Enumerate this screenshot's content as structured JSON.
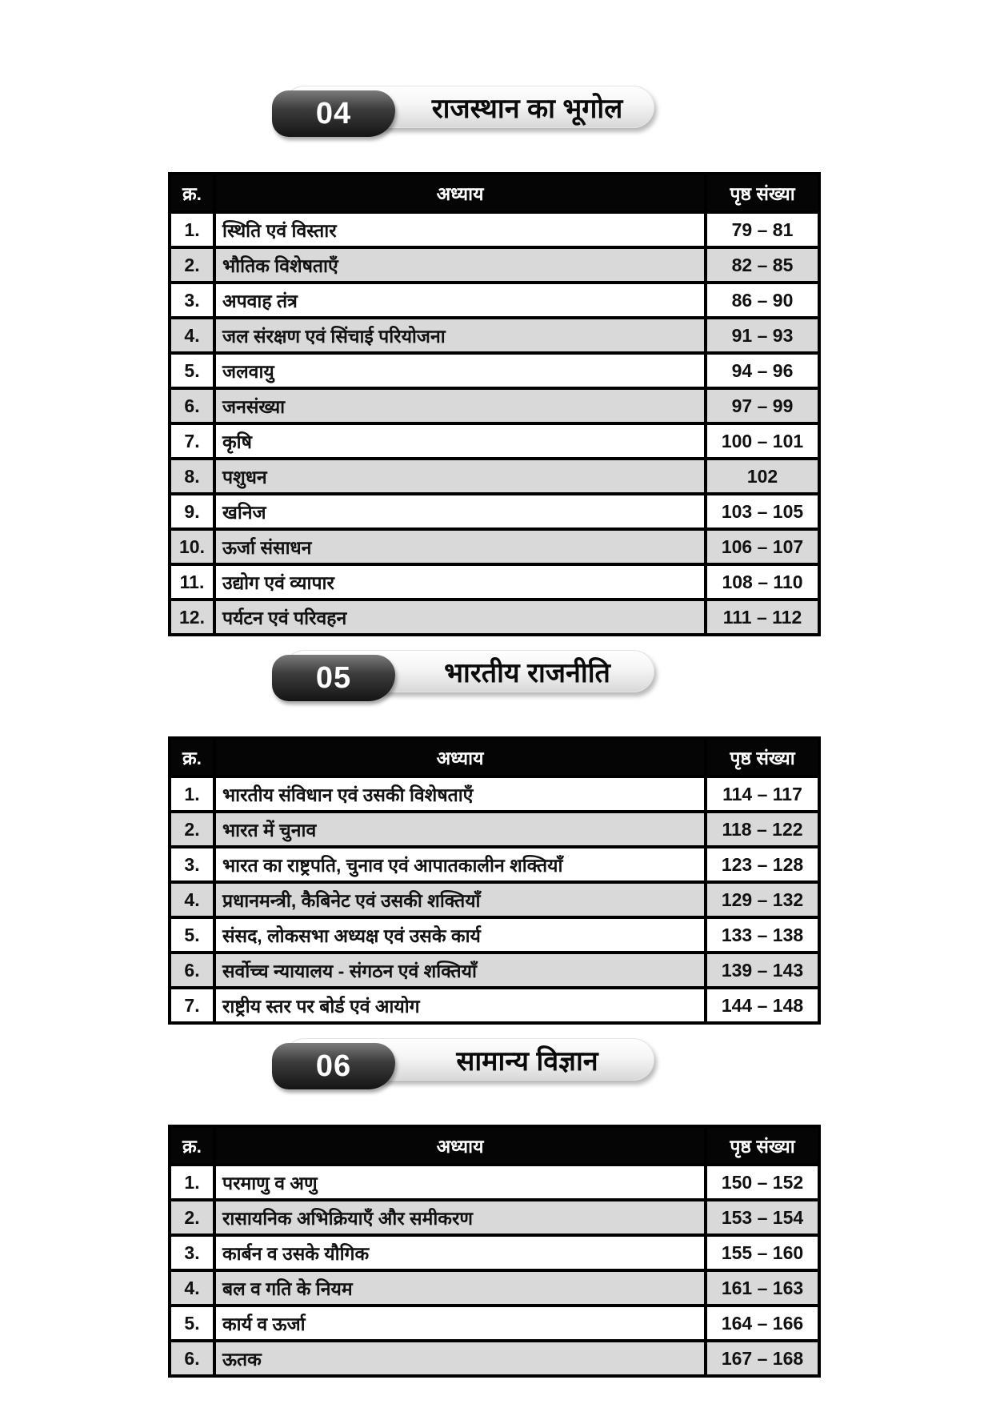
{
  "columns": {
    "no": "क्र.",
    "chapter": "अध्याय",
    "pages": "पृष्ठ संख्या"
  },
  "colors": {
    "table_header_bg": "#050505",
    "table_header_text": "#ffffff",
    "row_alt_bg": "#d9d9d9",
    "row_bg": "#ffffff",
    "border": "#000000",
    "badge_dark": "#141414",
    "pill_light": "#e9e9e9"
  },
  "sections": [
    {
      "number": "04",
      "title": "राजस्थान का भूगोल",
      "rows": [
        {
          "no": "1.",
          "chapter": "स्थिति एवं विस्तार",
          "pages": "79 – 81"
        },
        {
          "no": "2.",
          "chapter": "भौतिक विशेषताएँ",
          "pages": "82 – 85"
        },
        {
          "no": "3.",
          "chapter": "अपवाह तंत्र",
          "pages": "86 – 90"
        },
        {
          "no": "4.",
          "chapter": "जल संरक्षण एवं सिंचाई परियोजना",
          "pages": "91 – 93"
        },
        {
          "no": "5.",
          "chapter": "जलवायु",
          "pages": "94 – 96"
        },
        {
          "no": "6.",
          "chapter": "जनसंख्या",
          "pages": "97 – 99"
        },
        {
          "no": "7.",
          "chapter": "कृषि",
          "pages": "100 – 101"
        },
        {
          "no": "8.",
          "chapter": "पशुधन",
          "pages": "102"
        },
        {
          "no": "9.",
          "chapter": "खनिज",
          "pages": "103 – 105"
        },
        {
          "no": "10.",
          "chapter": "ऊर्जा संसाधन",
          "pages": "106 – 107"
        },
        {
          "no": "11.",
          "chapter": "उद्योग एवं व्यापार",
          "pages": "108 – 110"
        },
        {
          "no": "12.",
          "chapter": "पर्यटन एवं परिवहन",
          "pages": "111 – 112"
        }
      ]
    },
    {
      "number": "05",
      "title": "भारतीय राजनीति",
      "rows": [
        {
          "no": "1.",
          "chapter": "भारतीय संविधान एवं उसकी विशेषताएँ",
          "pages": "114 – 117"
        },
        {
          "no": "2.",
          "chapter": "भारत में चुनाव",
          "pages": "118 – 122"
        },
        {
          "no": "3.",
          "chapter": "भारत का राष्ट्रपति, चुनाव एवं आपातकालीन शक्तियाँ",
          "pages": "123 – 128"
        },
        {
          "no": "4.",
          "chapter": "प्रधानमन्त्री, कैबिनेट एवं उसकी शक्तियाँ",
          "pages": "129 – 132"
        },
        {
          "no": "5.",
          "chapter": "संसद, लोकसभा अध्यक्ष एवं उसके कार्य",
          "pages": "133 – 138"
        },
        {
          "no": "6.",
          "chapter": "सर्वोच्च न्यायालय - संगठन एवं शक्तियाँ",
          "pages": "139 – 143"
        },
        {
          "no": "7.",
          "chapter": "राष्ट्रीय स्तर पर बोर्ड एवं आयोग",
          "pages": "144 – 148"
        }
      ]
    },
    {
      "number": "06",
      "title": "सामान्य विज्ञान",
      "rows": [
        {
          "no": "1.",
          "chapter": "परमाणु व अणु",
          "pages": "150 – 152"
        },
        {
          "no": "2.",
          "chapter": "रासायनिक अभिक्रियाएँ और समीकरण",
          "pages": "153 – 154"
        },
        {
          "no": "3.",
          "chapter": "कार्बन व उसके यौगिक",
          "pages": "155 – 160"
        },
        {
          "no": "4.",
          "chapter": "बल व गति के नियम",
          "pages": "161 – 163"
        },
        {
          "no": "5.",
          "chapter": "कार्य व ऊर्जा",
          "pages": "164 – 166"
        },
        {
          "no": "6.",
          "chapter": "ऊतक",
          "pages": "167 – 168"
        }
      ]
    }
  ]
}
